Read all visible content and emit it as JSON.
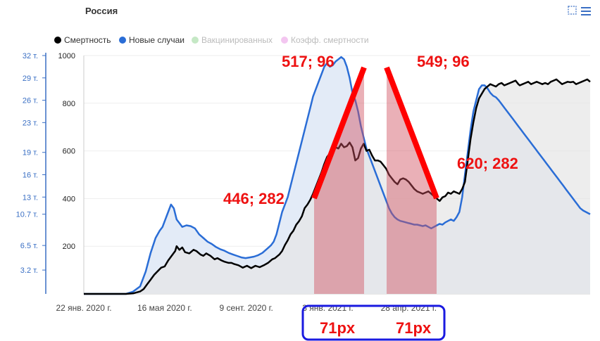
{
  "chart_data": {
    "type": "area",
    "title": "Россия",
    "legend": [
      {
        "name": "Смертность",
        "color": "#000000",
        "active": true
      },
      {
        "name": "Новые случаи",
        "color": "#2a6dd6",
        "active": true
      },
      {
        "name": "Вакцинированных",
        "color": "#c5e8c5",
        "active": false
      },
      {
        "name": "Коэфф. смертности",
        "color": "#f3c6f0",
        "active": false
      }
    ],
    "legend_position": "top-left",
    "y_left_ticks": [
      "32 т.",
      "29 т.",
      "26 т.",
      "23 т.",
      "19 т.",
      "16 т.",
      "13 т.",
      "10.7 т.",
      "6.5 т.",
      "3.2 т."
    ],
    "y_right_ticks": [
      "1000",
      "800",
      "600",
      "400",
      "200"
    ],
    "x_ticks": [
      "22 янв. 2020 г.",
      "16 мая 2020 г.",
      "9 сент. 2020 г.",
      "3 янв. 2021 г.",
      "28 апр. 2021 г."
    ],
    "ylim_deaths": [
      0,
      1000
    ],
    "ylim_cases": [
      0,
      32000
    ],
    "x_range_days": [
      0,
      540
    ],
    "series": [
      {
        "name": "Смертность",
        "color": "#000000",
        "fill": "#e6e6e6",
        "points": [
          [
            0,
            0
          ],
          [
            60,
            0
          ],
          [
            70,
            2
          ],
          [
            80,
            10
          ],
          [
            85,
            20
          ],
          [
            90,
            40
          ],
          [
            95,
            60
          ],
          [
            100,
            80
          ],
          [
            110,
            110
          ],
          [
            115,
            115
          ],
          [
            120,
            140
          ],
          [
            125,
            160
          ],
          [
            130,
            180
          ],
          [
            132,
            200
          ],
          [
            136,
            185
          ],
          [
            140,
            195
          ],
          [
            144,
            175
          ],
          [
            150,
            170
          ],
          [
            156,
            185
          ],
          [
            160,
            180
          ],
          [
            166,
            165
          ],
          [
            170,
            160
          ],
          [
            174,
            170
          ],
          [
            180,
            160
          ],
          [
            186,
            145
          ],
          [
            190,
            150
          ],
          [
            196,
            140
          ],
          [
            200,
            135
          ],
          [
            206,
            130
          ],
          [
            210,
            130
          ],
          [
            214,
            125
          ],
          [
            220,
            120
          ],
          [
            226,
            110
          ],
          [
            232,
            118
          ],
          [
            238,
            108
          ],
          [
            244,
            118
          ],
          [
            250,
            112
          ],
          [
            256,
            120
          ],
          [
            262,
            130
          ],
          [
            268,
            145
          ],
          [
            272,
            150
          ],
          [
            278,
            165
          ],
          [
            282,
            180
          ],
          [
            286,
            205
          ],
          [
            290,
            225
          ],
          [
            294,
            250
          ],
          [
            298,
            265
          ],
          [
            302,
            290
          ],
          [
            306,
            305
          ],
          [
            310,
            325
          ],
          [
            314,
            360
          ],
          [
            318,
            375
          ],
          [
            322,
            395
          ],
          [
            326,
            420
          ],
          [
            330,
            450
          ],
          [
            334,
            480
          ],
          [
            338,
            510
          ],
          [
            342,
            545
          ],
          [
            346,
            575
          ],
          [
            350,
            590
          ],
          [
            354,
            600
          ],
          [
            358,
            615
          ],
          [
            362,
            610
          ],
          [
            366,
            630
          ],
          [
            370,
            615
          ],
          [
            374,
            620
          ],
          [
            378,
            635
          ],
          [
            382,
            615
          ],
          [
            386,
            560
          ],
          [
            390,
            570
          ],
          [
            394,
            610
          ],
          [
            398,
            630
          ],
          [
            402,
            600
          ],
          [
            406,
            605
          ],
          [
            410,
            580
          ],
          [
            414,
            560
          ],
          [
            418,
            560
          ],
          [
            422,
            555
          ],
          [
            426,
            540
          ],
          [
            430,
            525
          ],
          [
            434,
            500
          ],
          [
            438,
            485
          ],
          [
            442,
            470
          ],
          [
            446,
            460
          ],
          [
            450,
            480
          ],
          [
            454,
            485
          ],
          [
            458,
            480
          ],
          [
            462,
            470
          ],
          [
            466,
            455
          ],
          [
            470,
            440
          ],
          [
            474,
            430
          ],
          [
            478,
            425
          ],
          [
            482,
            420
          ],
          [
            486,
            425
          ],
          [
            490,
            430
          ],
          [
            494,
            420
          ],
          [
            498,
            410
          ],
          [
            502,
            400
          ],
          [
            506,
            390
          ],
          [
            510,
            405
          ],
          [
            514,
            410
          ],
          [
            518,
            425
          ],
          [
            522,
            420
          ],
          [
            526,
            430
          ],
          [
            530,
            425
          ],
          [
            534,
            420
          ],
          [
            538,
            440
          ],
          [
            542,
            470
          ],
          [
            546,
            560
          ],
          [
            550,
            650
          ],
          [
            554,
            720
          ],
          [
            558,
            780
          ],
          [
            562,
            820
          ],
          [
            566,
            840
          ],
          [
            570,
            860
          ],
          [
            574,
            870
          ],
          [
            578,
            880
          ],
          [
            582,
            875
          ],
          [
            586,
            870
          ],
          [
            590,
            880
          ],
          [
            594,
            885
          ],
          [
            598,
            875
          ],
          [
            602,
            880
          ],
          [
            606,
            885
          ],
          [
            610,
            890
          ],
          [
            614,
            895
          ],
          [
            618,
            880
          ],
          [
            620,
            875
          ],
          [
            624,
            880
          ],
          [
            628,
            885
          ],
          [
            632,
            890
          ],
          [
            636,
            880
          ],
          [
            640,
            885
          ],
          [
            644,
            890
          ],
          [
            648,
            885
          ],
          [
            652,
            880
          ],
          [
            656,
            885
          ],
          [
            660,
            880
          ],
          [
            664,
            890
          ],
          [
            668,
            895
          ],
          [
            672,
            900
          ],
          [
            676,
            890
          ],
          [
            680,
            880
          ],
          [
            684,
            885
          ],
          [
            688,
            890
          ],
          [
            692,
            888
          ],
          [
            696,
            890
          ],
          [
            700,
            880
          ],
          [
            704,
            885
          ],
          [
            708,
            890
          ],
          [
            712,
            895
          ],
          [
            716,
            900
          ],
          [
            720,
            890
          ]
        ]
      },
      {
        "name": "Новые случаи",
        "color": "#2a6dd6",
        "fill": "#e3ebf7",
        "points": [
          [
            0,
            0
          ],
          [
            60,
            0
          ],
          [
            70,
            300
          ],
          [
            80,
            1000
          ],
          [
            88,
            3000
          ],
          [
            95,
            5500
          ],
          [
            102,
            7500
          ],
          [
            108,
            8500
          ],
          [
            112,
            9000
          ],
          [
            116,
            10000
          ],
          [
            120,
            11000
          ],
          [
            124,
            12000
          ],
          [
            128,
            11500
          ],
          [
            132,
            10000
          ],
          [
            136,
            9500
          ],
          [
            140,
            9000
          ],
          [
            146,
            9200
          ],
          [
            152,
            9100
          ],
          [
            158,
            8800
          ],
          [
            164,
            8000
          ],
          [
            170,
            7500
          ],
          [
            176,
            7000
          ],
          [
            182,
            6700
          ],
          [
            188,
            6300
          ],
          [
            194,
            6000
          ],
          [
            200,
            5800
          ],
          [
            206,
            5500
          ],
          [
            212,
            5300
          ],
          [
            218,
            5100
          ],
          [
            224,
            4900
          ],
          [
            230,
            4800
          ],
          [
            236,
            4900
          ],
          [
            242,
            5000
          ],
          [
            248,
            5200
          ],
          [
            254,
            5500
          ],
          [
            260,
            6000
          ],
          [
            266,
            6500
          ],
          [
            270,
            7000
          ],
          [
            274,
            8000
          ],
          [
            278,
            9500
          ],
          [
            282,
            11000
          ],
          [
            286,
            12000
          ],
          [
            290,
            13000
          ],
          [
            294,
            14500
          ],
          [
            298,
            16000
          ],
          [
            302,
            17500
          ],
          [
            306,
            19000
          ],
          [
            310,
            20500
          ],
          [
            314,
            22000
          ],
          [
            318,
            23500
          ],
          [
            322,
            25000
          ],
          [
            326,
            26500
          ],
          [
            330,
            27500
          ],
          [
            334,
            28500
          ],
          [
            338,
            29500
          ],
          [
            342,
            30500
          ],
          [
            346,
            31000
          ],
          [
            350,
            30500
          ],
          [
            354,
            30700
          ],
          [
            358,
            31200
          ],
          [
            362,
            31500
          ],
          [
            366,
            31800
          ],
          [
            370,
            31500
          ],
          [
            374,
            30500
          ],
          [
            378,
            29000
          ],
          [
            382,
            27000
          ],
          [
            386,
            26000
          ],
          [
            390,
            24500
          ],
          [
            394,
            22500
          ],
          [
            398,
            21000
          ],
          [
            402,
            19500
          ],
          [
            406,
            18500
          ],
          [
            410,
            17500
          ],
          [
            414,
            16500
          ],
          [
            418,
            15500
          ],
          [
            422,
            14500
          ],
          [
            426,
            13500
          ],
          [
            430,
            12500
          ],
          [
            434,
            11500
          ],
          [
            438,
            10800
          ],
          [
            442,
            10300
          ],
          [
            446,
            10000
          ],
          [
            450,
            9800
          ],
          [
            454,
            9700
          ],
          [
            458,
            9600
          ],
          [
            462,
            9500
          ],
          [
            466,
            9400
          ],
          [
            470,
            9300
          ],
          [
            474,
            9300
          ],
          [
            478,
            9200
          ],
          [
            482,
            9100
          ],
          [
            486,
            9200
          ],
          [
            490,
            9000
          ],
          [
            494,
            8800
          ],
          [
            498,
            9000
          ],
          [
            502,
            9200
          ],
          [
            506,
            9400
          ],
          [
            510,
            9300
          ],
          [
            514,
            9600
          ],
          [
            518,
            9800
          ],
          [
            522,
            10000
          ],
          [
            526,
            9800
          ],
          [
            530,
            10300
          ],
          [
            534,
            11000
          ],
          [
            538,
            13000
          ],
          [
            542,
            16000
          ],
          [
            546,
            19000
          ],
          [
            550,
            22000
          ],
          [
            554,
            24500
          ],
          [
            558,
            26000
          ],
          [
            562,
            27500
          ],
          [
            566,
            28000
          ],
          [
            570,
            28000
          ],
          [
            574,
            27600
          ],
          [
            578,
            27000
          ],
          [
            582,
            26600
          ],
          [
            586,
            26400
          ],
          [
            590,
            26000
          ],
          [
            594,
            25500
          ],
          [
            598,
            25000
          ],
          [
            602,
            24500
          ],
          [
            606,
            24000
          ],
          [
            610,
            23500
          ],
          [
            614,
            23000
          ],
          [
            618,
            22500
          ],
          [
            622,
            22000
          ],
          [
            626,
            21500
          ],
          [
            630,
            21000
          ],
          [
            634,
            20500
          ],
          [
            638,
            20000
          ],
          [
            642,
            19500
          ],
          [
            646,
            19000
          ],
          [
            650,
            18500
          ],
          [
            654,
            18000
          ],
          [
            658,
            17500
          ],
          [
            662,
            17000
          ],
          [
            666,
            16500
          ],
          [
            670,
            16000
          ],
          [
            674,
            15500
          ],
          [
            678,
            15000
          ],
          [
            682,
            14500
          ],
          [
            686,
            14000
          ],
          [
            690,
            13500
          ],
          [
            694,
            13000
          ],
          [
            698,
            12500
          ],
          [
            702,
            12000
          ],
          [
            706,
            11500
          ],
          [
            710,
            11200
          ],
          [
            714,
            11000
          ],
          [
            718,
            10800
          ],
          [
            720,
            10700
          ]
        ]
      }
    ],
    "annotations": [
      {
        "text": "517; 96",
        "color": "#ee1111"
      },
      {
        "text": "549; 96",
        "color": "#ee1111"
      },
      {
        "text": "446; 282",
        "color": "#ee1111"
      },
      {
        "text": "620; 282",
        "color": "#ee1111"
      }
    ],
    "box_labels": [
      {
        "text": "71px",
        "color": "#ee1111"
      },
      {
        "text": "71px",
        "color": "#ee1111"
      }
    ]
  },
  "toolbar": {
    "select_icon": "select-square-icon",
    "menu_icon": "hamburger-menu-icon"
  }
}
